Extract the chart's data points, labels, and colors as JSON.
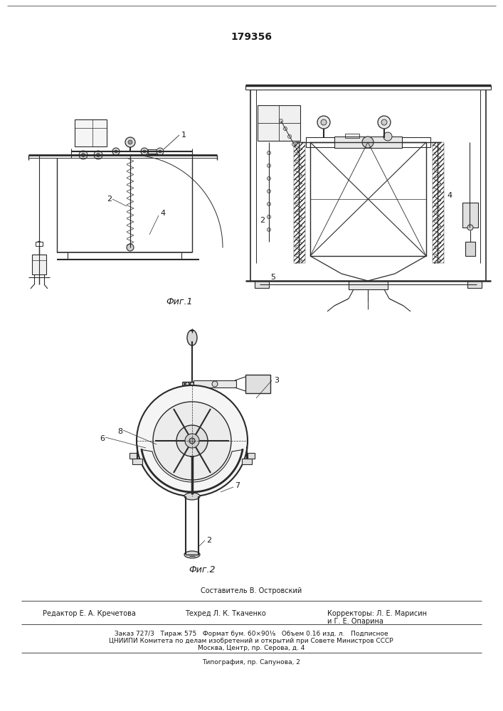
{
  "title_number": "179356",
  "fig1_label": "Фиг.1",
  "fig2_label": "Фиг.2",
  "compiler_line": "Составитель В. Островский",
  "editor_line": "Редактор Е. А. Кречетова",
  "techred_line": "Техред Л. К. Ткаченко",
  "correctors_line": "Корректоры: Л. Е. Марисин",
  "correctors_line2": "и Г. Е. Опарина",
  "footer_line1": "Заказ 727/3   Тираж 575   Формат бум. 60×90⅛   Объем 0.16 изд. л.   Подписное",
  "footer_line2": "ЦНИИПИ Комитета по делам изобретений и открытий при Совете Министров СССР",
  "footer_line3": "Москва, Центр, пр. Серова, д. 4",
  "footer_line4": "Типография, пр. Сапунова, 2",
  "bg_color": "#ffffff",
  "line_color": "#2a2a2a",
  "font_color": "#1a1a1a"
}
